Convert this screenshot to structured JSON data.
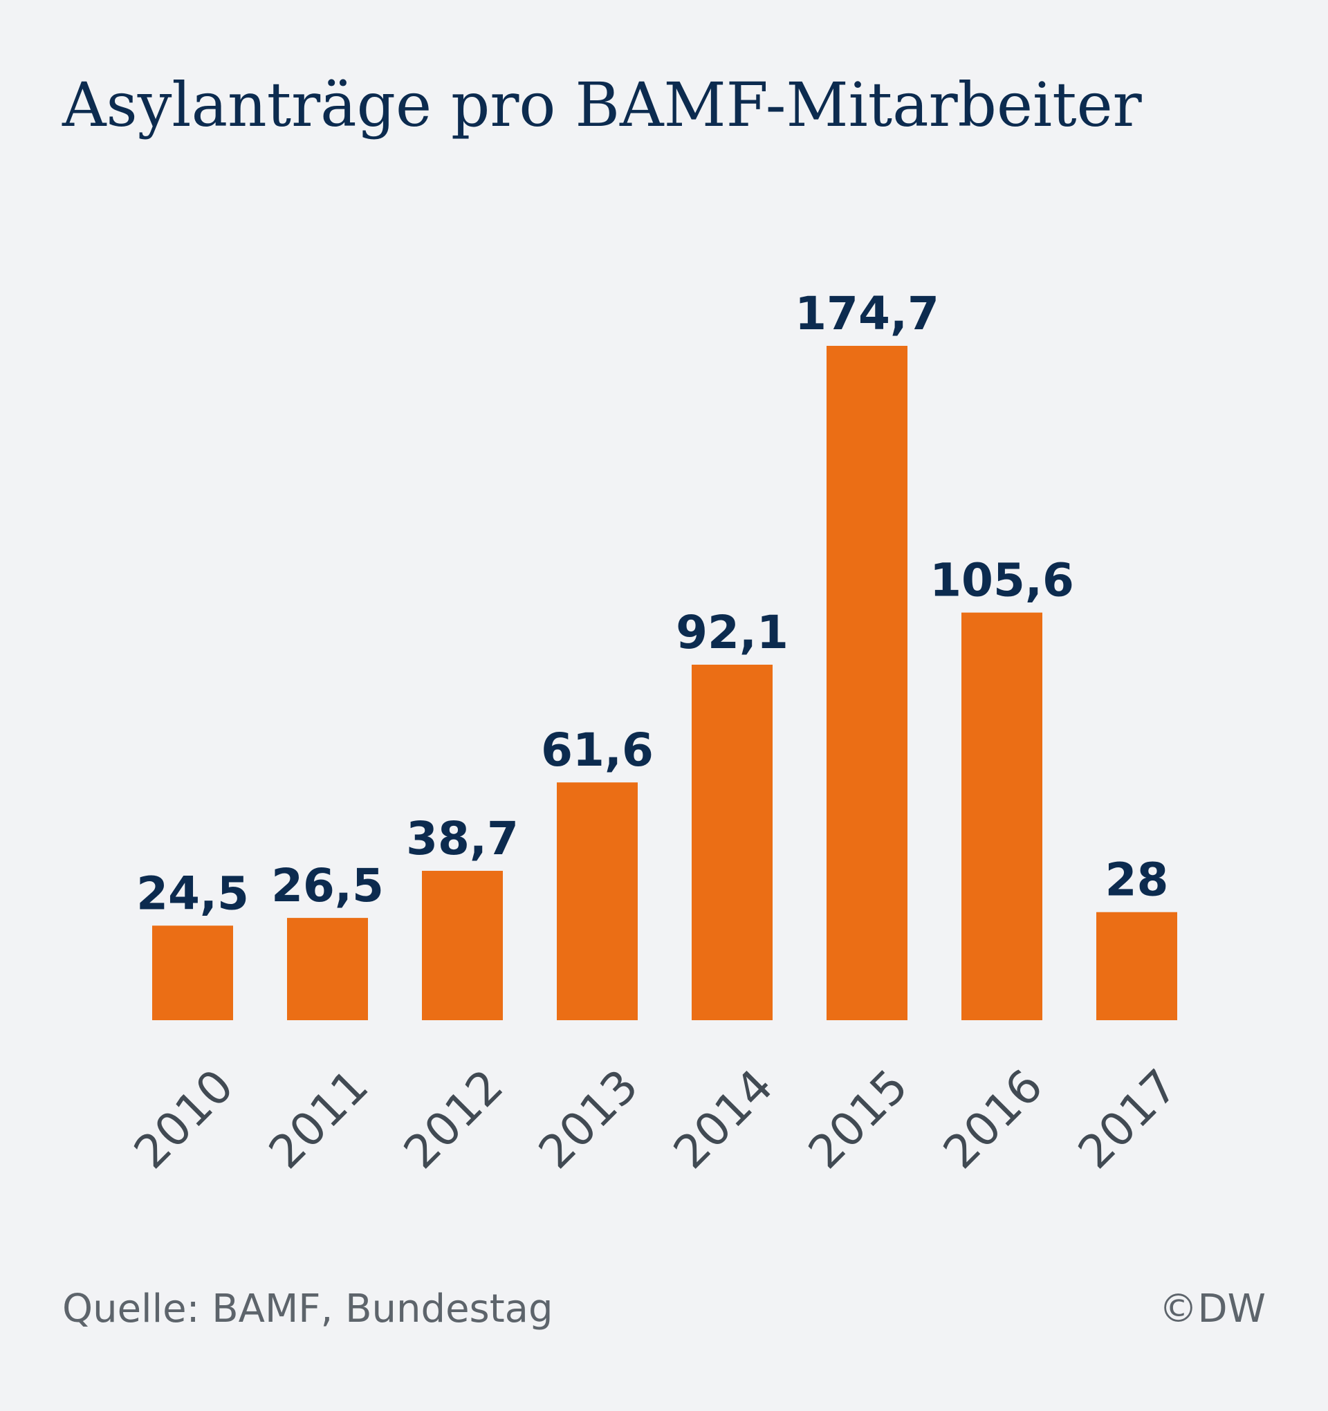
{
  "chart_data": {
    "type": "bar",
    "title": "Asylanträge pro BAMF-Mitarbeiter",
    "categories": [
      "2010",
      "2011",
      "2012",
      "2013",
      "2014",
      "2015",
      "2016",
      "2017"
    ],
    "values": [
      24.5,
      26.5,
      38.7,
      61.6,
      92.1,
      174.7,
      105.6,
      28
    ],
    "value_labels": [
      "24,5",
      "26,5",
      "38,7",
      "61,6",
      "92,1",
      "174,7",
      "105,6",
      "28"
    ],
    "xlabel": "",
    "ylabel": "",
    "ylim": [
      0,
      174.7
    ],
    "grid": false,
    "bar_color": "#eb6e15"
  },
  "source": "Quelle: BAMF, Bundestag",
  "copyright": "©DW"
}
